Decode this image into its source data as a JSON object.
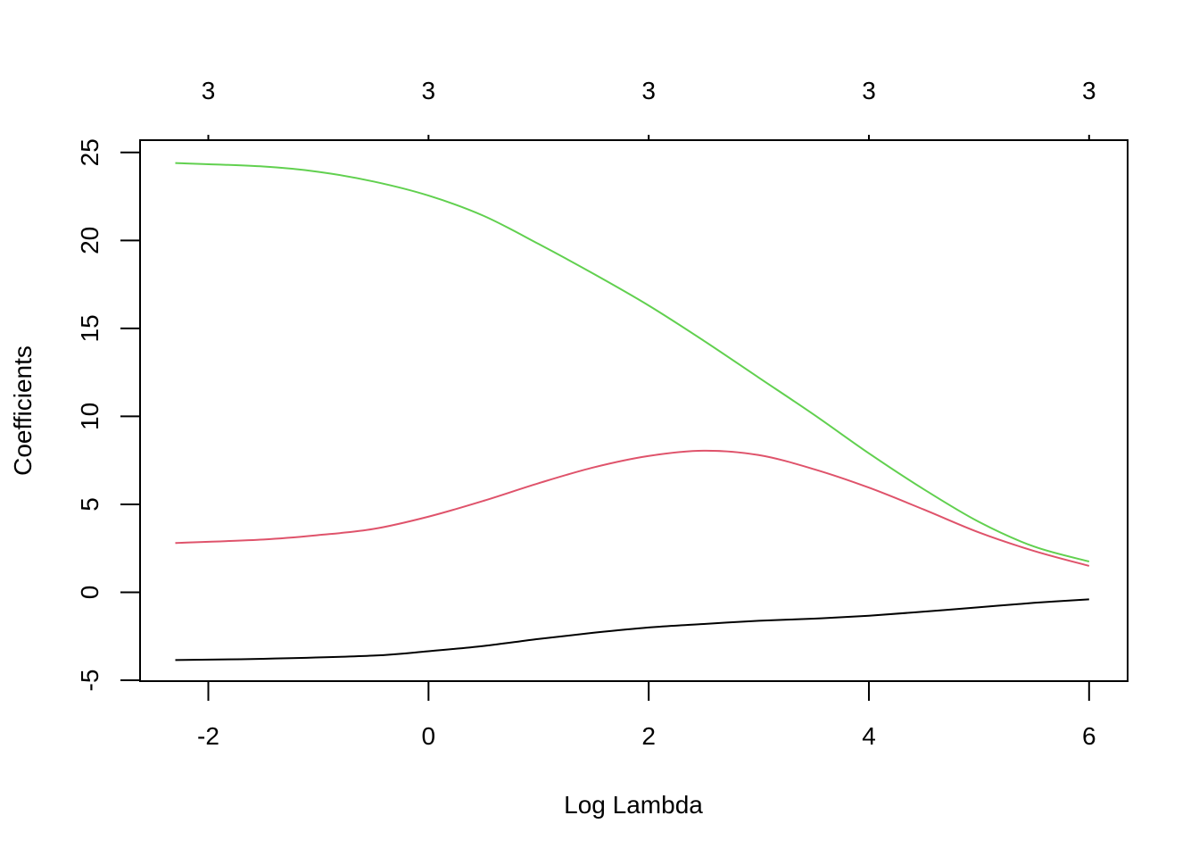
{
  "chart_data": {
    "type": "line",
    "xlabel": "Log Lambda",
    "ylabel": "Coefficients",
    "xlim": [
      -2.62,
      6.35
    ],
    "ylim": [
      -5.05,
      25.7
    ],
    "x_ticks": [
      -2,
      0,
      2,
      4,
      6
    ],
    "x_tick_labels": [
      "-2",
      "0",
      "2",
      "4",
      "6"
    ],
    "y_ticks": [
      -5,
      0,
      5,
      10,
      15,
      20,
      25
    ],
    "y_tick_labels": [
      "-5",
      "0",
      "5",
      "10",
      "15",
      "20",
      "25"
    ],
    "top_ticks": [
      -2,
      0,
      2,
      4,
      6
    ],
    "top_tick_labels": [
      "3",
      "3",
      "3",
      "3",
      "3"
    ],
    "grid": false,
    "series": [
      {
        "color": "#000000",
        "points": [
          [
            -2.3,
            -3.85
          ],
          [
            -1.5,
            -3.78
          ],
          [
            -0.5,
            -3.6
          ],
          [
            0,
            -3.35
          ],
          [
            0.5,
            -3.05
          ],
          [
            1,
            -2.65
          ],
          [
            1.5,
            -2.3
          ],
          [
            2,
            -2.0
          ],
          [
            2.5,
            -1.8
          ],
          [
            3,
            -1.62
          ],
          [
            3.5,
            -1.5
          ],
          [
            4,
            -1.33
          ],
          [
            4.5,
            -1.1
          ],
          [
            5,
            -0.85
          ],
          [
            5.5,
            -0.6
          ],
          [
            6,
            -0.4
          ]
        ]
      },
      {
        "color": "#DF536B",
        "points": [
          [
            -2.3,
            2.8
          ],
          [
            -1.5,
            3.0
          ],
          [
            -1,
            3.25
          ],
          [
            -0.5,
            3.6
          ],
          [
            0,
            4.3
          ],
          [
            0.5,
            5.2
          ],
          [
            1,
            6.2
          ],
          [
            1.5,
            7.1
          ],
          [
            2,
            7.75
          ],
          [
            2.5,
            8.05
          ],
          [
            3,
            7.8
          ],
          [
            3.5,
            7.0
          ],
          [
            4,
            5.95
          ],
          [
            4.5,
            4.7
          ],
          [
            5,
            3.4
          ],
          [
            5.5,
            2.35
          ],
          [
            6,
            1.5
          ]
        ]
      },
      {
        "color": "#61D04F",
        "points": [
          [
            -2.3,
            24.4
          ],
          [
            -1.5,
            24.2
          ],
          [
            -1,
            23.9
          ],
          [
            -0.5,
            23.35
          ],
          [
            0,
            22.55
          ],
          [
            0.5,
            21.4
          ],
          [
            1,
            19.8
          ],
          [
            1.5,
            18.1
          ],
          [
            2,
            16.3
          ],
          [
            2.5,
            14.3
          ],
          [
            3,
            12.2
          ],
          [
            3.5,
            10.1
          ],
          [
            4,
            7.9
          ],
          [
            4.5,
            5.85
          ],
          [
            5,
            4.0
          ],
          [
            5.5,
            2.6
          ],
          [
            6,
            1.75
          ]
        ]
      }
    ]
  }
}
